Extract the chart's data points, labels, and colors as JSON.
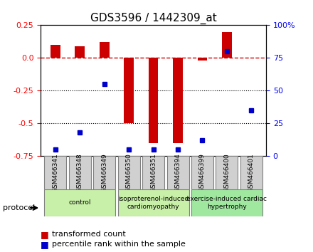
{
  "title": "GDS3596 / 1442309_at",
  "samples": [
    "GSM466341",
    "GSM466348",
    "GSM466349",
    "GSM466350",
    "GSM466351",
    "GSM466394",
    "GSM466399",
    "GSM466400",
    "GSM466401"
  ],
  "transformed_count": [
    0.1,
    0.09,
    0.12,
    -0.5,
    -0.65,
    -0.65,
    -0.02,
    0.2,
    0.0
  ],
  "percentile_rank": [
    5,
    18,
    55,
    5,
    5,
    5,
    12,
    80,
    35
  ],
  "ylim_left": [
    -0.75,
    0.25
  ],
  "ylim_right": [
    0,
    100
  ],
  "yticks_left": [
    0.25,
    0.0,
    -0.25,
    -0.5,
    -0.75
  ],
  "yticks_right": [
    100,
    75,
    50,
    25,
    0
  ],
  "yticks_right_labels": [
    "100%",
    "75",
    "50",
    "25",
    "0"
  ],
  "bar_color": "#cc0000",
  "dot_color": "#0000cc",
  "dotted_lines": [
    -0.25,
    -0.5
  ],
  "title_fontsize": 11,
  "tick_fontsize": 8,
  "legend_fontsize": 8,
  "protocol_label": "protocol",
  "group_configs": [
    [
      0,
      3,
      "#c8f0a8",
      "control"
    ],
    [
      3,
      6,
      "#c8f0a8",
      "isoproterenol-induced\ncardiomyopathy"
    ],
    [
      6,
      9,
      "#a0e8a0",
      "exercise-induced cardiac\nhypertrophy"
    ]
  ]
}
